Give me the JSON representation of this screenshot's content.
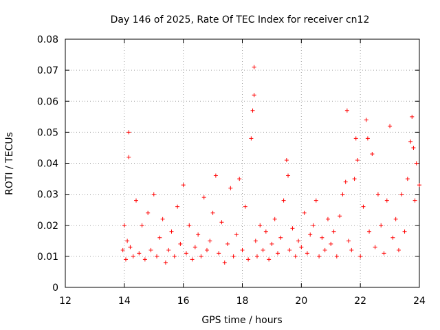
{
  "chart_data": {
    "type": "scatter",
    "title": "Day 146 of 2025, Rate Of TEC Index for receiver cn12",
    "xlabel": "GPS time / hours",
    "ylabel": "ROTI / TECUs",
    "xlim": [
      12,
      24
    ],
    "ylim": [
      0,
      0.08
    ],
    "xticks": [
      12,
      14,
      16,
      18,
      20,
      22,
      24
    ],
    "xtick_labels": [
      "12",
      "14",
      "16",
      "18",
      "20",
      "22",
      "24"
    ],
    "yticks": [
      0,
      0.01,
      0.02,
      0.03,
      0.04,
      0.05,
      0.06,
      0.07,
      0.08
    ],
    "ytick_labels": [
      "0",
      "0.01",
      "0.02",
      "0.03",
      "0.04",
      "0.05",
      "0.06",
      "0.07",
      "0.08"
    ],
    "grid": true,
    "marker": "+",
    "series": [
      {
        "name": "ROTI",
        "color": "#ff0000",
        "x": [
          13.95,
          14.0,
          14.05,
          14.1,
          14.15,
          14.15,
          14.2,
          14.3,
          14.4,
          14.5,
          14.6,
          14.7,
          14.8,
          14.9,
          15.0,
          15.1,
          15.2,
          15.3,
          15.4,
          15.5,
          15.6,
          15.7,
          15.8,
          15.9,
          16.0,
          16.1,
          16.2,
          16.3,
          16.4,
          16.5,
          16.6,
          16.7,
          16.8,
          16.9,
          17.0,
          17.1,
          17.2,
          17.3,
          17.4,
          17.5,
          17.6,
          17.7,
          17.8,
          17.9,
          18.0,
          18.1,
          18.2,
          18.3,
          18.35,
          18.4,
          18.4,
          18.45,
          18.5,
          18.6,
          18.7,
          18.8,
          18.9,
          19.0,
          19.1,
          19.2,
          19.3,
          19.4,
          19.5,
          19.55,
          19.6,
          19.7,
          19.8,
          19.9,
          20.0,
          20.1,
          20.2,
          20.3,
          20.4,
          20.5,
          20.6,
          20.7,
          20.8,
          20.9,
          21.0,
          21.1,
          21.2,
          21.3,
          21.4,
          21.5,
          21.55,
          21.6,
          21.7,
          21.8,
          21.85,
          21.9,
          22.0,
          22.1,
          22.2,
          22.25,
          22.3,
          22.4,
          22.5,
          22.6,
          22.7,
          22.8,
          22.9,
          23.0,
          23.1,
          23.2,
          23.3,
          23.4,
          23.5,
          23.6,
          23.7,
          23.75,
          23.8,
          23.85,
          23.9,
          24.0
        ],
        "y": [
          0.012,
          0.02,
          0.009,
          0.015,
          0.05,
          0.042,
          0.013,
          0.01,
          0.028,
          0.011,
          0.02,
          0.009,
          0.024,
          0.012,
          0.03,
          0.01,
          0.016,
          0.022,
          0.008,
          0.012,
          0.018,
          0.01,
          0.026,
          0.014,
          0.033,
          0.011,
          0.02,
          0.009,
          0.013,
          0.017,
          0.01,
          0.029,
          0.012,
          0.015,
          0.024,
          0.036,
          0.011,
          0.021,
          0.008,
          0.014,
          0.032,
          0.01,
          0.017,
          0.035,
          0.012,
          0.026,
          0.009,
          0.048,
          0.057,
          0.071,
          0.062,
          0.015,
          0.01,
          0.02,
          0.012,
          0.018,
          0.009,
          0.014,
          0.022,
          0.011,
          0.016,
          0.028,
          0.041,
          0.036,
          0.012,
          0.019,
          0.01,
          0.015,
          0.013,
          0.024,
          0.011,
          0.017,
          0.02,
          0.028,
          0.01,
          0.016,
          0.012,
          0.022,
          0.014,
          0.018,
          0.01,
          0.023,
          0.03,
          0.034,
          0.057,
          0.015,
          0.012,
          0.035,
          0.048,
          0.041,
          0.01,
          0.026,
          0.054,
          0.048,
          0.018,
          0.043,
          0.013,
          0.03,
          0.02,
          0.011,
          0.028,
          0.052,
          0.016,
          0.022,
          0.012,
          0.03,
          0.018,
          0.035,
          0.047,
          0.055,
          0.045,
          0.028,
          0.04,
          0.033
        ]
      }
    ]
  }
}
